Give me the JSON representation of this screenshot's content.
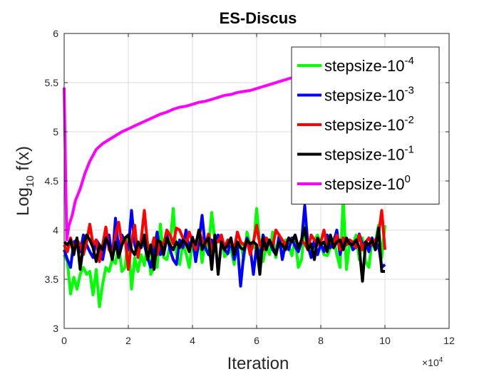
{
  "chart_data": {
    "type": "line",
    "title": "ES-Discus",
    "xlabel": "Iteration",
    "ylabel": {
      "base": "Log",
      "sub": "10",
      "rest": " f(x)"
    },
    "xlim": [
      0,
      120000
    ],
    "ylim": [
      3,
      6
    ],
    "x_ticks": [
      0,
      20000,
      40000,
      60000,
      80000,
      100000,
      120000
    ],
    "x_tick_labels": [
      "0",
      "2",
      "4",
      "6",
      "8",
      "10",
      "12"
    ],
    "x_exponent": {
      "base": "×10",
      "exp": "4"
    },
    "y_ticks": [
      3,
      3.5,
      4,
      4.5,
      5,
      5.5,
      6
    ],
    "y_tick_labels": [
      "3",
      "3.5",
      "4",
      "4.5",
      "5",
      "5.5",
      "6"
    ],
    "grid": true,
    "legend_position": "top-right",
    "series": [
      {
        "name": "stepsize-10^-4",
        "label_base": "stepsize-10",
        "label_exp": "-4",
        "color": "#00ff00",
        "x": [
          0,
          1000,
          2000,
          3000,
          4000,
          5000,
          6000,
          7000,
          8000,
          9000,
          10000,
          11000,
          12000,
          13000,
          14000,
          15000,
          16000,
          17000,
          18000,
          19000,
          20000,
          21000,
          22000,
          23000,
          24000,
          25000,
          26000,
          27000,
          28000,
          29000,
          30000,
          31000,
          32000,
          33000,
          34000,
          35000,
          36000,
          37000,
          38000,
          39000,
          40000,
          41000,
          42000,
          43000,
          44000,
          45000,
          46000,
          47000,
          48000,
          49000,
          50000,
          51000,
          52000,
          53000,
          54000,
          55000,
          56000,
          57000,
          58000,
          59000,
          60000,
          61000,
          62000,
          63000,
          64000,
          65000,
          66000,
          67000,
          68000,
          69000,
          70000,
          71000,
          72000,
          73000,
          74000,
          75000,
          76000,
          77000,
          78000,
          79000,
          80000,
          81000,
          82000,
          83000,
          84000,
          85000,
          86000,
          87000,
          88000,
          89000,
          90000,
          91000,
          92000,
          93000,
          94000,
          95000,
          96000,
          97000,
          98000,
          99000,
          100000
        ],
        "values": [
          3.75,
          3.68,
          3.35,
          3.52,
          3.4,
          3.55,
          3.62,
          3.55,
          3.58,
          3.34,
          3.6,
          3.22,
          3.45,
          3.62,
          3.58,
          3.7,
          3.66,
          3.85,
          3.58,
          3.62,
          3.95,
          3.4,
          3.72,
          3.58,
          3.75,
          3.64,
          3.88,
          3.55,
          3.62,
          3.62,
          4.06,
          3.72,
          3.7,
          3.84,
          4.22,
          3.75,
          3.65,
          3.87,
          3.76,
          3.62,
          3.9,
          3.68,
          3.95,
          3.67,
          3.9,
          3.8,
          4.18,
          3.88,
          3.9,
          3.92,
          3.73,
          3.76,
          3.8,
          3.65,
          3.88,
          3.86,
          3.7,
          3.98,
          3.85,
          3.82,
          4.22,
          3.85,
          3.68,
          3.84,
          3.75,
          3.98,
          3.72,
          3.95,
          3.75,
          3.9,
          3.85,
          3.74,
          3.92,
          3.62,
          3.7,
          4.05,
          3.88,
          3.73,
          3.9,
          3.95,
          3.86,
          3.75,
          3.74,
          3.82,
          3.92,
          3.75,
          3.62,
          4.32,
          3.6,
          3.88,
          3.85,
          3.95,
          3.7,
          3.92,
          3.68,
          3.62,
          3.9,
          3.88,
          4.05,
          3.72,
          4.05
        ]
      },
      {
        "name": "stepsize-10^-3",
        "label_base": "stepsize-10",
        "label_exp": "-3",
        "color": "#0000ff",
        "x": [
          0,
          1000,
          2000,
          3000,
          4000,
          5000,
          6000,
          7000,
          8000,
          9000,
          10000,
          11000,
          12000,
          13000,
          14000,
          15000,
          16000,
          17000,
          18000,
          19000,
          20000,
          21000,
          22000,
          23000,
          24000,
          25000,
          26000,
          27000,
          28000,
          29000,
          30000,
          31000,
          32000,
          33000,
          34000,
          35000,
          36000,
          37000,
          38000,
          39000,
          40000,
          41000,
          42000,
          43000,
          44000,
          45000,
          46000,
          47000,
          48000,
          49000,
          50000,
          51000,
          52000,
          53000,
          54000,
          55000,
          56000,
          57000,
          58000,
          59000,
          60000,
          61000,
          62000,
          63000,
          64000,
          65000,
          66000,
          67000,
          68000,
          69000,
          70000,
          71000,
          72000,
          73000,
          74000,
          75000,
          76000,
          77000,
          78000,
          79000,
          80000,
          81000,
          82000,
          83000,
          84000,
          85000,
          86000,
          87000,
          88000,
          89000,
          90000,
          91000,
          92000,
          93000,
          94000,
          95000,
          96000,
          97000,
          98000,
          99000,
          100000
        ],
        "values": [
          3.8,
          3.7,
          3.62,
          3.88,
          3.9,
          3.78,
          3.95,
          3.85,
          3.78,
          3.72,
          3.9,
          3.85,
          3.7,
          3.88,
          3.95,
          3.7,
          4.12,
          3.8,
          3.95,
          3.88,
          3.8,
          4.2,
          3.85,
          3.74,
          3.9,
          3.85,
          3.72,
          3.62,
          3.8,
          3.98,
          3.75,
          3.85,
          3.96,
          3.8,
          3.7,
          3.65,
          3.9,
          3.82,
          4.0,
          3.8,
          3.93,
          3.68,
          3.88,
          4.15,
          3.82,
          3.75,
          3.9,
          3.83,
          3.95,
          3.86,
          3.8,
          3.76,
          3.9,
          3.7,
          3.85,
          3.43,
          3.76,
          3.92,
          3.82,
          3.55,
          3.85,
          3.72,
          3.95,
          3.86,
          3.88,
          3.8,
          3.75,
          3.94,
          3.7,
          3.86,
          3.8,
          3.92,
          3.83,
          3.78,
          3.88,
          4.25,
          3.84,
          3.72,
          3.9,
          3.75,
          3.86,
          3.78,
          3.95,
          3.82,
          3.88,
          4.0,
          3.75,
          3.92,
          3.85,
          3.9,
          3.8,
          3.83,
          3.96,
          3.85,
          3.88,
          3.78,
          3.92,
          3.8,
          3.85,
          3.62,
          3.65
        ]
      },
      {
        "name": "stepsize-10^-2",
        "label_base": "stepsize-10",
        "label_exp": "-2",
        "color": "#ff0000",
        "x": [
          0,
          1000,
          2000,
          3000,
          4000,
          5000,
          6000,
          7000,
          8000,
          9000,
          10000,
          11000,
          12000,
          13000,
          14000,
          15000,
          16000,
          17000,
          18000,
          19000,
          20000,
          21000,
          22000,
          23000,
          24000,
          25000,
          26000,
          27000,
          28000,
          29000,
          30000,
          31000,
          32000,
          33000,
          34000,
          35000,
          36000,
          37000,
          38000,
          39000,
          40000,
          41000,
          42000,
          43000,
          44000,
          45000,
          46000,
          47000,
          48000,
          49000,
          50000,
          51000,
          52000,
          53000,
          54000,
          55000,
          56000,
          57000,
          58000,
          59000,
          60000,
          61000,
          62000,
          63000,
          64000,
          65000,
          66000,
          67000,
          68000,
          69000,
          70000,
          71000,
          72000,
          73000,
          74000,
          75000,
          76000,
          77000,
          78000,
          79000,
          80000,
          81000,
          82000,
          83000,
          84000,
          85000,
          86000,
          87000,
          88000,
          89000,
          90000,
          91000,
          92000,
          93000,
          94000,
          95000,
          96000,
          97000,
          98000,
          99000,
          100000
        ],
        "values": [
          3.85,
          3.78,
          3.92,
          3.8,
          3.9,
          3.85,
          3.75,
          3.88,
          4.06,
          3.85,
          3.9,
          3.68,
          3.85,
          4.03,
          3.8,
          3.75,
          3.95,
          4.08,
          3.85,
          3.92,
          3.6,
          3.88,
          4.05,
          3.72,
          3.9,
          4.2,
          3.85,
          3.78,
          3.92,
          3.75,
          3.88,
          3.85,
          4.0,
          3.95,
          3.86,
          4.02,
          4.0,
          3.92,
          3.85,
          3.98,
          3.88,
          3.8,
          4.0,
          3.9,
          3.85,
          3.96,
          3.78,
          3.9,
          3.88,
          3.95,
          3.82,
          3.9,
          3.86,
          3.8,
          3.98,
          3.88,
          3.85,
          3.9,
          3.75,
          3.88,
          4.05,
          3.85,
          3.8,
          3.92,
          3.88,
          3.83,
          4.0,
          3.95,
          3.9,
          3.85,
          3.92,
          3.88,
          3.95,
          3.82,
          3.9,
          3.86,
          3.8,
          3.95,
          3.9,
          3.85,
          3.88,
          4.0,
          3.82,
          3.9,
          3.86,
          3.95,
          3.8,
          3.92,
          3.85,
          3.9,
          3.88,
          3.82,
          3.95,
          3.8,
          3.88,
          3.92,
          3.85,
          3.9,
          3.95,
          4.2,
          3.8
        ]
      },
      {
        "name": "stepsize-10^-1",
        "label_base": "stepsize-10",
        "label_exp": "-1",
        "color": "#000000",
        "x": [
          0,
          1000,
          2000,
          3000,
          4000,
          5000,
          6000,
          7000,
          8000,
          9000,
          10000,
          11000,
          12000,
          13000,
          14000,
          15000,
          16000,
          17000,
          18000,
          19000,
          20000,
          21000,
          22000,
          23000,
          24000,
          25000,
          26000,
          27000,
          28000,
          29000,
          30000,
          31000,
          32000,
          33000,
          34000,
          35000,
          36000,
          37000,
          38000,
          39000,
          40000,
          41000,
          42000,
          43000,
          44000,
          45000,
          46000,
          47000,
          48000,
          49000,
          50000,
          51000,
          52000,
          53000,
          54000,
          55000,
          56000,
          57000,
          58000,
          59000,
          60000,
          61000,
          62000,
          63000,
          64000,
          65000,
          66000,
          67000,
          68000,
          69000,
          70000,
          71000,
          72000,
          73000,
          74000,
          75000,
          76000,
          77000,
          78000,
          79000,
          80000,
          81000,
          82000,
          83000,
          84000,
          85000,
          86000,
          87000,
          88000,
          89000,
          90000,
          91000,
          92000,
          93000,
          94000,
          95000,
          96000,
          97000,
          98000,
          99000,
          100000
        ],
        "values": [
          3.88,
          3.85,
          3.9,
          3.75,
          3.92,
          3.6,
          3.85,
          3.95,
          3.9,
          3.82,
          3.68,
          3.85,
          3.8,
          3.92,
          3.85,
          3.7,
          3.88,
          3.72,
          3.85,
          3.92,
          3.95,
          3.8,
          3.75,
          3.88,
          3.82,
          3.95,
          3.7,
          3.85,
          3.6,
          3.9,
          3.88,
          3.75,
          3.92,
          3.85,
          3.8,
          3.88,
          3.82,
          3.9,
          3.86,
          3.78,
          3.92,
          3.85,
          4.0,
          3.8,
          3.88,
          3.92,
          3.6,
          3.95,
          3.55,
          3.88,
          3.8,
          3.85,
          3.92,
          3.75,
          3.88,
          3.82,
          3.8,
          3.9,
          3.86,
          3.88,
          3.85,
          3.55,
          3.92,
          3.8,
          3.9,
          3.83,
          3.75,
          3.88,
          3.85,
          3.8,
          3.92,
          3.88,
          3.95,
          3.82,
          3.9,
          4.02,
          3.8,
          3.86,
          3.7,
          3.92,
          3.85,
          3.88,
          3.78,
          3.95,
          3.82,
          3.88,
          3.9,
          3.8,
          3.92,
          3.86,
          3.85,
          3.9,
          3.82,
          3.48,
          3.88,
          3.85,
          3.9,
          3.8,
          4.02,
          3.58,
          3.58
        ]
      },
      {
        "name": "stepsize-10^0",
        "label_base": "stepsize-10",
        "label_exp": "0",
        "color": "#ff00ff",
        "x": [
          0,
          800,
          1500,
          2500,
          3500,
          5000,
          6500,
          8000,
          10000,
          12000,
          14000,
          16000,
          18000,
          20000,
          22000,
          24000,
          26000,
          28000,
          30000,
          32000,
          34000,
          36000,
          38000,
          40000,
          42000,
          44000,
          46000,
          48000,
          50000,
          52000,
          54000,
          56000,
          58000,
          60000,
          62000,
          64000,
          66000,
          68000,
          70000,
          71000
        ],
        "values": [
          5.45,
          3.9,
          4.05,
          4.15,
          4.3,
          4.42,
          4.58,
          4.7,
          4.82,
          4.88,
          4.92,
          4.96,
          5.0,
          5.03,
          5.06,
          5.09,
          5.12,
          5.15,
          5.18,
          5.2,
          5.23,
          5.25,
          5.26,
          5.28,
          5.3,
          5.31,
          5.33,
          5.35,
          5.37,
          5.38,
          5.4,
          5.41,
          5.42,
          5.44,
          5.46,
          5.48,
          5.5,
          5.52,
          5.54,
          5.55
        ]
      }
    ]
  }
}
